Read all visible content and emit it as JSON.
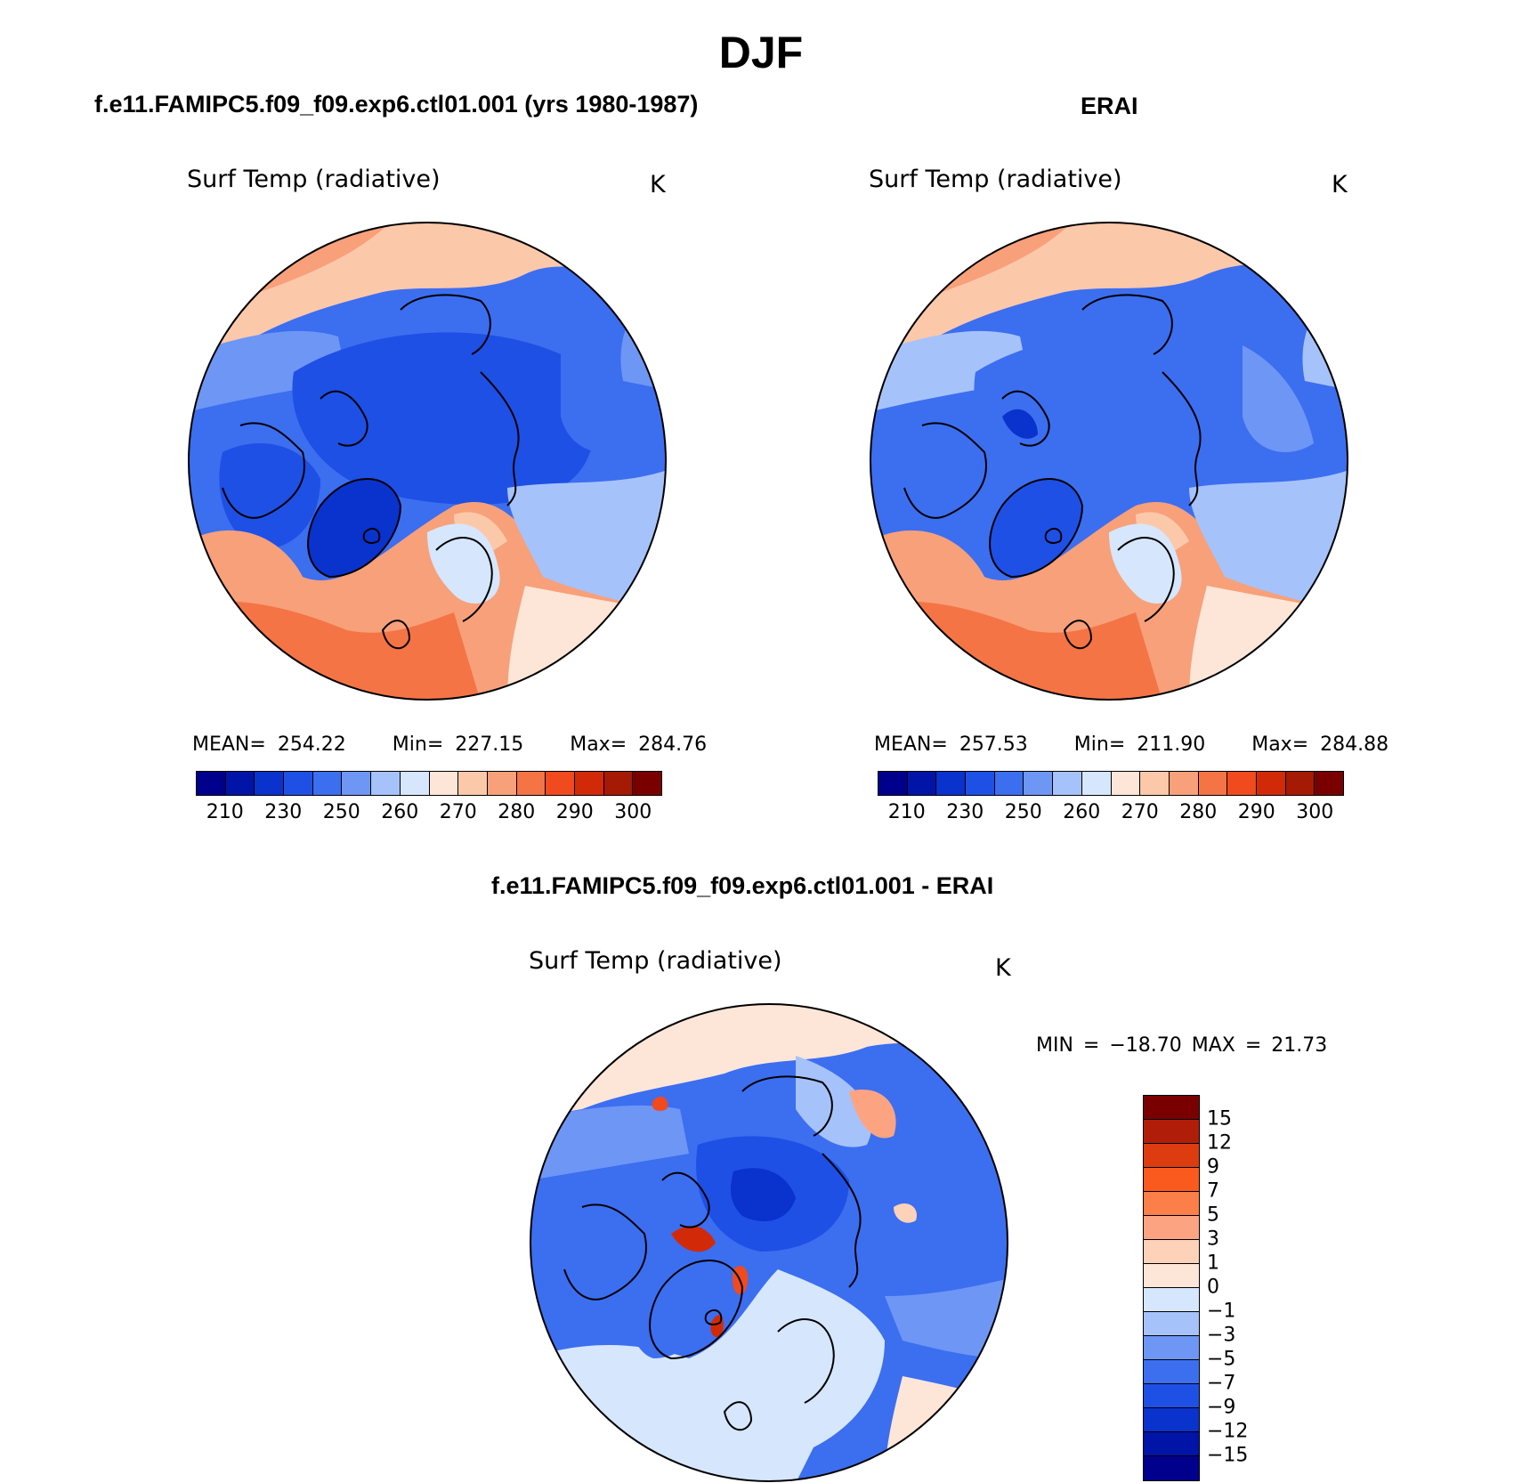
{
  "title": "DJF",
  "panels": [
    {
      "title": "f.e11.FAMIPC5.f09_f09.exp6.ctl01.001 (yrs 1980-1987)",
      "variable": "Surf Temp (radiative)",
      "units": "K",
      "mean_label": "MEAN= 254.22",
      "min_label": "Min= 227.15",
      "max_label": "Max= 284.76"
    },
    {
      "title": "ERAI",
      "variable": "Surf Temp (radiative)",
      "units": "K",
      "mean_label": "MEAN= 257.53",
      "min_label": "Min= 211.90",
      "max_label": "Max= 284.88"
    }
  ],
  "diff_panel": {
    "title": "f.e11.FAMIPC5.f09_f09.exp6.ctl01.001 - ERAI",
    "variable": "Surf Temp (radiative)",
    "units": "K",
    "minmax_label": "MIN = −18.70 MAX =   21.73"
  },
  "abs_colorbar": {
    "colors": [
      "#00008c",
      "#0014a8",
      "#0a32cc",
      "#1e50e6",
      "#3c6ef0",
      "#6e96f5",
      "#a6c2fa",
      "#d6e6fc",
      "#fde6d8",
      "#fcc8aa",
      "#f8a07a",
      "#f47446",
      "#f04a1e",
      "#d22a08",
      "#a51a05",
      "#7a0000"
    ],
    "ticks": [
      "210",
      "230",
      "250",
      "260",
      "270",
      "280",
      "290",
      "300"
    ]
  },
  "diff_colorbar": {
    "colors": [
      "#7a0000",
      "#b01e0a",
      "#dc3c0f",
      "#fa5a1e",
      "#fc7e48",
      "#fca482",
      "#fdd2b8",
      "#fde6d8",
      "#d6e6fc",
      "#a6c2fa",
      "#6e96f5",
      "#3c6ef0",
      "#1e50e6",
      "#0a32cc",
      "#0014a8",
      "#00008c"
    ],
    "ticks": [
      "15",
      "12",
      "9",
      "7",
      "5",
      "3",
      "1",
      "0",
      "−1",
      "−3",
      "−5",
      "−7",
      "−9",
      "−12",
      "−15"
    ]
  },
  "chart_data": [
    {
      "type": "heatmap",
      "title": "f.e11.FAMIPC5.f09_f09.exp6.ctl01.001 (yrs 1980-1987)",
      "variable": "Surf Temp (radiative)",
      "units": "K",
      "projection": "north polar stereographic",
      "mean": 254.22,
      "min": 227.15,
      "max": 284.76,
      "levels": [
        210,
        220,
        230,
        240,
        250,
        255,
        260,
        265,
        270,
        275,
        280,
        285,
        290,
        295,
        300
      ]
    },
    {
      "type": "heatmap",
      "title": "ERAI",
      "variable": "Surf Temp (radiative)",
      "units": "K",
      "projection": "north polar stereographic",
      "mean": 257.53,
      "min": 211.9,
      "max": 284.88,
      "levels": [
        210,
        220,
        230,
        240,
        250,
        255,
        260,
        265,
        270,
        275,
        280,
        285,
        290,
        295,
        300
      ]
    },
    {
      "type": "heatmap",
      "title": "f.e11.FAMIPC5.f09_f09.exp6.ctl01.001 - ERAI",
      "variable": "Surf Temp (radiative)",
      "units": "K",
      "projection": "north polar stereographic",
      "min": -18.7,
      "max": 21.73,
      "levels": [
        -15,
        -12,
        -9,
        -7,
        -5,
        -3,
        -1,
        0,
        1,
        3,
        5,
        7,
        9,
        12,
        15
      ]
    }
  ]
}
